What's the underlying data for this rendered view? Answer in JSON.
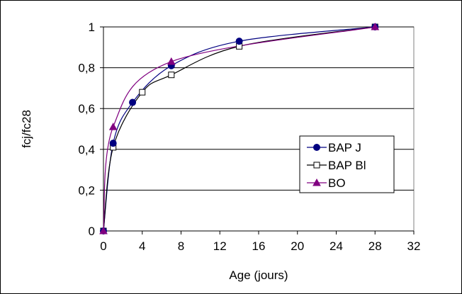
{
  "chart_data": {
    "type": "line",
    "title": "",
    "xlabel": "Age (jours)",
    "ylabel": "fcj/fc28",
    "xlim": [
      0,
      32
    ],
    "ylim": [
      0,
      1
    ],
    "x_ticks": [
      "0",
      "4",
      "8",
      "12",
      "16",
      "20",
      "24",
      "28",
      "32"
    ],
    "y_ticks": [
      "0",
      "0,2",
      "0,4",
      "0,6",
      "0,8",
      "1"
    ],
    "grid": "horizontal",
    "legend_position": "right",
    "series": [
      {
        "name": "BAP J",
        "color": "#000080",
        "marker": "filled-circle",
        "x": [
          0,
          1,
          3,
          7,
          14,
          28
        ],
        "values": [
          0,
          0.43,
          0.63,
          0.81,
          0.93,
          1.0
        ]
      },
      {
        "name": "BAP Bl",
        "color": "#000000",
        "marker": "open-square",
        "x": [
          0,
          1,
          4,
          7,
          14,
          28
        ],
        "values": [
          0,
          0.41,
          0.68,
          0.765,
          0.905,
          1.0
        ]
      },
      {
        "name": "BO",
        "color": "#800080",
        "marker": "filled-triangle",
        "x": [
          0,
          1,
          7,
          28
        ],
        "values": [
          0,
          0.51,
          0.83,
          1.0
        ]
      }
    ]
  }
}
